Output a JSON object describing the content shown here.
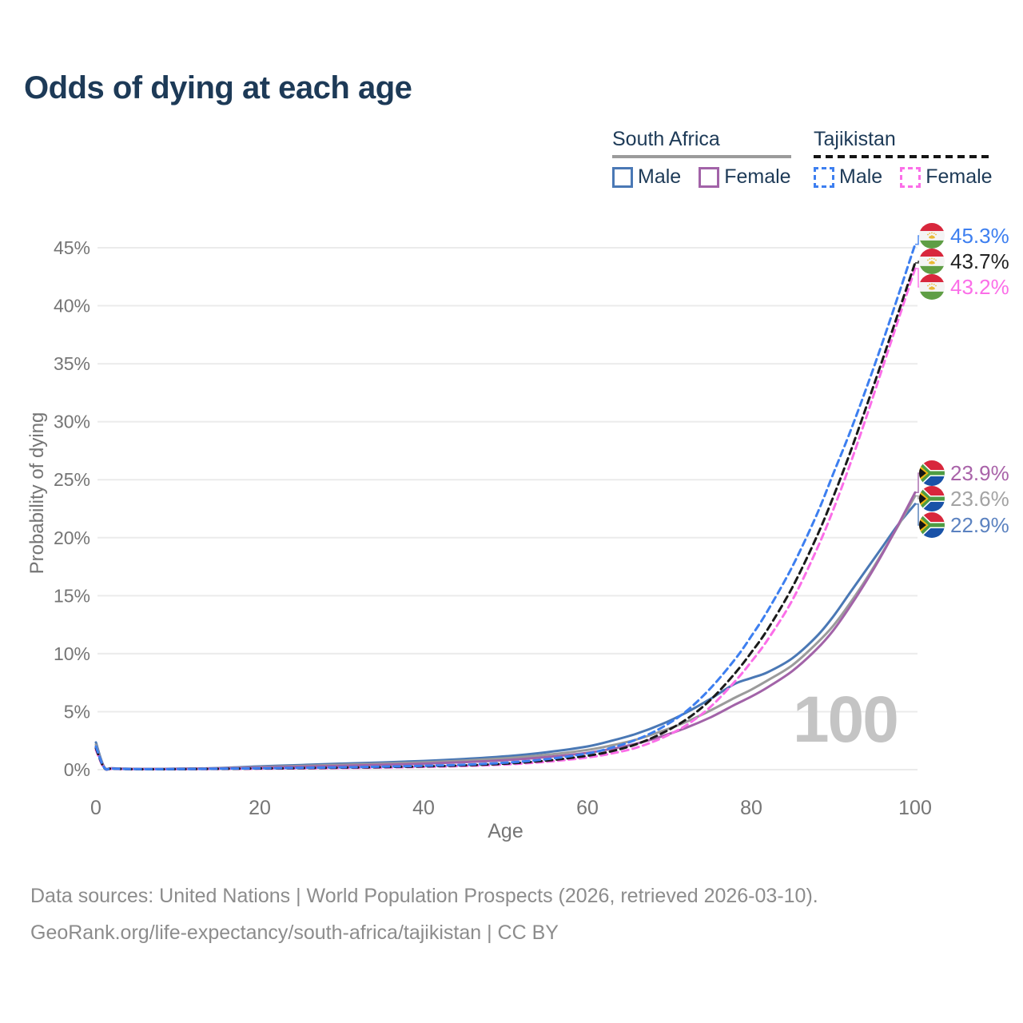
{
  "title": "Odds of dying at each age",
  "legend": {
    "groups": [
      {
        "label": "South Africa",
        "line_style": "solid",
        "underline_color": "#9b9b9b",
        "items": [
          {
            "label": "Male",
            "color": "#4a78b5"
          },
          {
            "label": "Female",
            "color": "#a263a8"
          }
        ]
      },
      {
        "label": "Tajikistan",
        "line_style": "dashed",
        "underline_color": "#141414",
        "items": [
          {
            "label": "Male",
            "color": "#3d7ff0"
          },
          {
            "label": "Female",
            "color": "#fb6ee8"
          }
        ]
      }
    ]
  },
  "chart_data": {
    "type": "line",
    "title": "Odds of dying at each age",
    "xlabel": "Age",
    "ylabel": "Probability of dying",
    "xlim": [
      0,
      100
    ],
    "ylim": [
      0,
      46.5
    ],
    "x_ticks": [
      0,
      20,
      40,
      60,
      80,
      100
    ],
    "y_ticks": [
      "0%",
      "5%",
      "10%",
      "15%",
      "20%",
      "25%",
      "30%",
      "35%",
      "40%",
      "45%"
    ],
    "y_tick_values": [
      0,
      5,
      10,
      15,
      20,
      25,
      30,
      35,
      40,
      45
    ],
    "grid": "horizontal-only",
    "legend_position": "top-right",
    "watermark": "100",
    "series": [
      {
        "key": "sa_male",
        "name": "South Africa Male",
        "color": "#4a78b5",
        "style": "solid",
        "points": [
          [
            0,
            2.35
          ],
          [
            1,
            0.25
          ],
          [
            2,
            0.12
          ],
          [
            5,
            0.07
          ],
          [
            10,
            0.08
          ],
          [
            15,
            0.14
          ],
          [
            20,
            0.28
          ],
          [
            25,
            0.4
          ],
          [
            30,
            0.52
          ],
          [
            35,
            0.62
          ],
          [
            40,
            0.75
          ],
          [
            45,
            0.92
          ],
          [
            50,
            1.15
          ],
          [
            55,
            1.5
          ],
          [
            60,
            2.0
          ],
          [
            63,
            2.5
          ],
          [
            66,
            3.1
          ],
          [
            69,
            3.9
          ],
          [
            72,
            4.9
          ],
          [
            75,
            6.1
          ],
          [
            78,
            7.4
          ],
          [
            80,
            7.9
          ],
          [
            82,
            8.4
          ],
          [
            85,
            9.6
          ],
          [
            88,
            11.5
          ],
          [
            90,
            13.2
          ],
          [
            92,
            15.2
          ],
          [
            94,
            17.2
          ],
          [
            96,
            19.2
          ],
          [
            98,
            21.2
          ],
          [
            100,
            22.9
          ]
        ]
      },
      {
        "key": "sa_both",
        "name": "South Africa",
        "color": "#9b9b9b",
        "style": "solid",
        "points": [
          [
            0,
            2.15
          ],
          [
            1,
            0.22
          ],
          [
            2,
            0.11
          ],
          [
            5,
            0.06
          ],
          [
            10,
            0.07
          ],
          [
            15,
            0.12
          ],
          [
            20,
            0.22
          ],
          [
            25,
            0.32
          ],
          [
            30,
            0.42
          ],
          [
            35,
            0.52
          ],
          [
            40,
            0.63
          ],
          [
            45,
            0.78
          ],
          [
            50,
            0.98
          ],
          [
            55,
            1.28
          ],
          [
            60,
            1.7
          ],
          [
            63,
            2.1
          ],
          [
            66,
            2.6
          ],
          [
            69,
            3.3
          ],
          [
            72,
            4.1
          ],
          [
            75,
            5.1
          ],
          [
            78,
            6.2
          ],
          [
            80,
            6.9
          ],
          [
            82,
            7.7
          ],
          [
            85,
            9.0
          ],
          [
            88,
            10.9
          ],
          [
            90,
            12.4
          ],
          [
            92,
            14.3
          ],
          [
            94,
            16.4
          ],
          [
            96,
            18.7
          ],
          [
            98,
            21.1
          ],
          [
            100,
            23.6
          ]
        ]
      },
      {
        "key": "sa_female",
        "name": "South Africa Female",
        "color": "#a263a8",
        "style": "solid",
        "points": [
          [
            0,
            1.95
          ],
          [
            1,
            0.2
          ],
          [
            2,
            0.1
          ],
          [
            5,
            0.05
          ],
          [
            10,
            0.06
          ],
          [
            15,
            0.1
          ],
          [
            20,
            0.17
          ],
          [
            25,
            0.25
          ],
          [
            30,
            0.33
          ],
          [
            35,
            0.42
          ],
          [
            40,
            0.52
          ],
          [
            45,
            0.65
          ],
          [
            50,
            0.82
          ],
          [
            55,
            1.08
          ],
          [
            60,
            1.45
          ],
          [
            63,
            1.8
          ],
          [
            66,
            2.25
          ],
          [
            69,
            2.85
          ],
          [
            72,
            3.6
          ],
          [
            75,
            4.5
          ],
          [
            78,
            5.6
          ],
          [
            80,
            6.3
          ],
          [
            82,
            7.1
          ],
          [
            85,
            8.5
          ],
          [
            88,
            10.4
          ],
          [
            90,
            12.0
          ],
          [
            92,
            14.0
          ],
          [
            94,
            16.2
          ],
          [
            96,
            18.6
          ],
          [
            98,
            21.2
          ],
          [
            100,
            23.9
          ]
        ]
      },
      {
        "key": "tj_female",
        "name": "Tajikistan Female",
        "color": "#fb6ee8",
        "style": "dashed",
        "points": [
          [
            0,
            1.7
          ],
          [
            1,
            0.14
          ],
          [
            2,
            0.07
          ],
          [
            5,
            0.04
          ],
          [
            10,
            0.04
          ],
          [
            15,
            0.06
          ],
          [
            20,
            0.08
          ],
          [
            25,
            0.11
          ],
          [
            30,
            0.14
          ],
          [
            35,
            0.18
          ],
          [
            40,
            0.24
          ],
          [
            45,
            0.32
          ],
          [
            50,
            0.45
          ],
          [
            55,
            0.68
          ],
          [
            60,
            1.05
          ],
          [
            63,
            1.4
          ],
          [
            66,
            1.9
          ],
          [
            69,
            2.7
          ],
          [
            72,
            3.8
          ],
          [
            75,
            5.4
          ],
          [
            78,
            7.6
          ],
          [
            80,
            9.3
          ],
          [
            82,
            11.2
          ],
          [
            85,
            14.6
          ],
          [
            88,
            19.0
          ],
          [
            90,
            22.4
          ],
          [
            92,
            26.2
          ],
          [
            94,
            30.3
          ],
          [
            96,
            34.6
          ],
          [
            98,
            38.9
          ],
          [
            100,
            43.2
          ]
        ]
      },
      {
        "key": "tj_both",
        "name": "Tajikistan",
        "color": "#1a1a1a",
        "style": "dashed",
        "points": [
          [
            0,
            1.85
          ],
          [
            1,
            0.16
          ],
          [
            2,
            0.08
          ],
          [
            5,
            0.04
          ],
          [
            10,
            0.04
          ],
          [
            15,
            0.07
          ],
          [
            20,
            0.1
          ],
          [
            25,
            0.13
          ],
          [
            30,
            0.17
          ],
          [
            35,
            0.22
          ],
          [
            40,
            0.28
          ],
          [
            45,
            0.37
          ],
          [
            50,
            0.52
          ],
          [
            55,
            0.78
          ],
          [
            60,
            1.2
          ],
          [
            63,
            1.6
          ],
          [
            66,
            2.2
          ],
          [
            69,
            3.1
          ],
          [
            72,
            4.3
          ],
          [
            75,
            6.0
          ],
          [
            78,
            8.3
          ],
          [
            80,
            10.1
          ],
          [
            82,
            12.1
          ],
          [
            85,
            15.7
          ],
          [
            88,
            20.1
          ],
          [
            90,
            23.5
          ],
          [
            92,
            27.2
          ],
          [
            94,
            31.2
          ],
          [
            96,
            35.3
          ],
          [
            98,
            39.5
          ],
          [
            100,
            43.7
          ]
        ]
      },
      {
        "key": "tj_male",
        "name": "Tajikistan Male",
        "color": "#3d7ff0",
        "style": "dashed",
        "points": [
          [
            0,
            2.0
          ],
          [
            1,
            0.18
          ],
          [
            2,
            0.09
          ],
          [
            5,
            0.05
          ],
          [
            10,
            0.05
          ],
          [
            15,
            0.08
          ],
          [
            20,
            0.12
          ],
          [
            25,
            0.16
          ],
          [
            30,
            0.2
          ],
          [
            35,
            0.26
          ],
          [
            40,
            0.33
          ],
          [
            45,
            0.43
          ],
          [
            50,
            0.6
          ],
          [
            55,
            0.9
          ],
          [
            60,
            1.4
          ],
          [
            63,
            1.9
          ],
          [
            66,
            2.6
          ],
          [
            69,
            3.6
          ],
          [
            72,
            5.0
          ],
          [
            75,
            7.0
          ],
          [
            78,
            9.5
          ],
          [
            80,
            11.5
          ],
          [
            82,
            13.7
          ],
          [
            85,
            17.5
          ],
          [
            88,
            22.0
          ],
          [
            90,
            25.5
          ],
          [
            92,
            29.0
          ],
          [
            94,
            32.8
          ],
          [
            96,
            36.8
          ],
          [
            98,
            41.0
          ],
          [
            100,
            45.3
          ]
        ]
      }
    ]
  },
  "end_labels": [
    {
      "series_key": "tj_male",
      "value": "45.3%",
      "color": "#3d7ff0",
      "flag": "tajikistan"
    },
    {
      "series_key": "tj_both",
      "value": "43.7%",
      "color": "#222222",
      "flag": "tajikistan"
    },
    {
      "series_key": "tj_female",
      "value": "43.2%",
      "color": "#fb6ee8",
      "flag": "tajikistan"
    },
    {
      "series_key": "sa_female",
      "value": "23.9%",
      "color": "#a963a9",
      "flag": "south-africa"
    },
    {
      "series_key": "sa_both",
      "value": "23.6%",
      "color": "#a3a3a3",
      "flag": "south-africa"
    },
    {
      "series_key": "sa_male",
      "value": "22.9%",
      "color": "#5b82c0",
      "flag": "south-africa"
    }
  ],
  "footer": {
    "line1": "Data sources: United Nations | World Population Prospects (2026, retrieved 2026-03-10).",
    "line2": "GeoRank.org/life-expectancy/south-africa/tajikistan | CC BY"
  }
}
